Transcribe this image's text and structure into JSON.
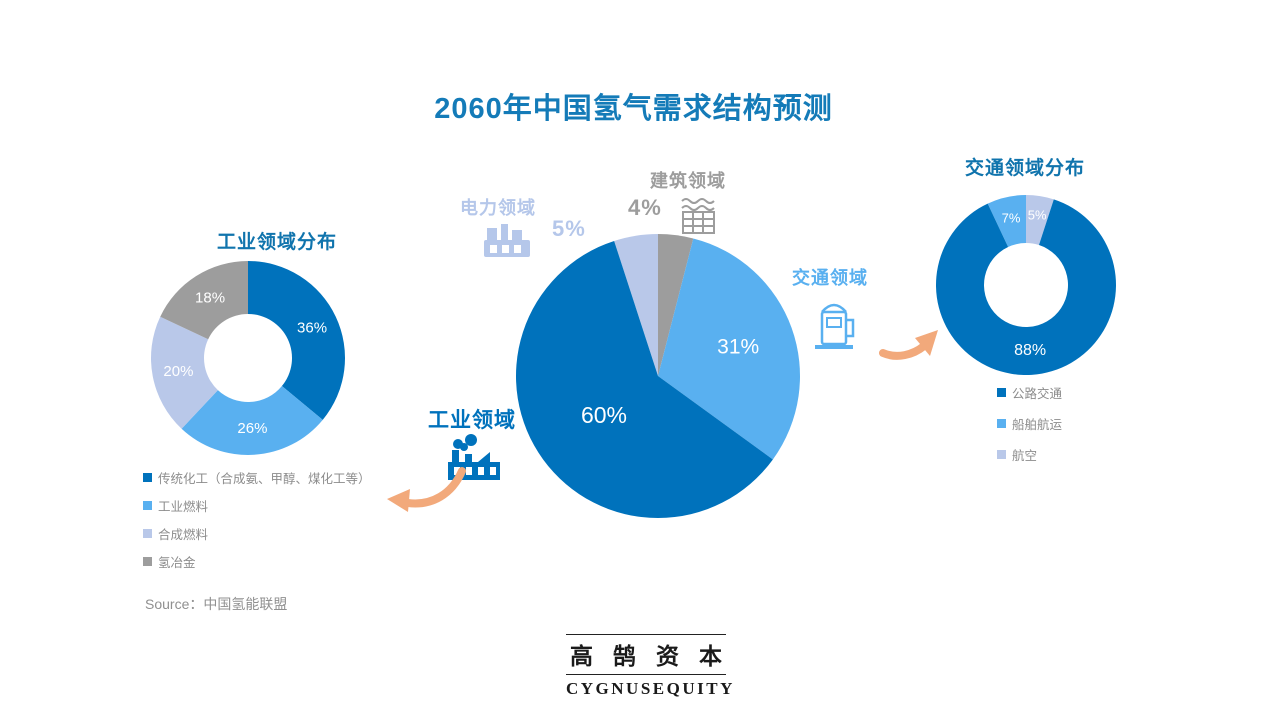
{
  "title": "2060年中国氢气需求结构预测",
  "source": "Source：中国氢能联盟",
  "logo": {
    "chinese": "高鹄资本",
    "english": "CYGNUSEQUITY"
  },
  "colors": {
    "dark_blue": "#0072bc",
    "light_blue": "#59b0f0",
    "pale_blue": "#b9c8e9",
    "gray": "#9d9d9d",
    "title_blue": "#147bb8",
    "arrow_orange": "#f2a97b",
    "legend_text": "#8c8c8c"
  },
  "callouts": {
    "power": {
      "name": "电力领域",
      "pct": "5%"
    },
    "building": {
      "name": "建筑领域",
      "pct": "4%"
    },
    "transport": {
      "name": "交通领域"
    },
    "industry": {
      "name": "工业领域"
    }
  },
  "chart_data": [
    {
      "id": "main-pie",
      "type": "pie",
      "title": "2060年中国氢气需求结构预测",
      "categories": [
        "工业领域",
        "交通领域",
        "电力领域",
        "建筑领域"
      ],
      "values": [
        60,
        31,
        5,
        4
      ],
      "colors": [
        "#0072bc",
        "#59b0f0",
        "#b9c8e9",
        "#9d9d9d"
      ],
      "label_format": "percent",
      "legend_position": "none"
    },
    {
      "id": "industry-donut",
      "type": "donut",
      "title": "工业领域分布",
      "categories": [
        "传统化工（合成氨、甲醇、煤化工等）",
        "工业燃料",
        "合成燃料",
        "氢冶金"
      ],
      "values": [
        36,
        26,
        20,
        18
      ],
      "colors": [
        "#0072bc",
        "#59b0f0",
        "#b9c8e9",
        "#9d9d9d"
      ],
      "label_format": "percent",
      "legend_position": "bottom-left"
    },
    {
      "id": "transport-donut",
      "type": "donut",
      "title": "交通领域分布",
      "categories": [
        "公路交通",
        "船舶航运",
        "航空"
      ],
      "values": [
        88,
        7,
        5
      ],
      "colors": [
        "#0072bc",
        "#59b0f0",
        "#b9c8e9"
      ],
      "label_format": "percent",
      "legend_position": "bottom"
    }
  ]
}
